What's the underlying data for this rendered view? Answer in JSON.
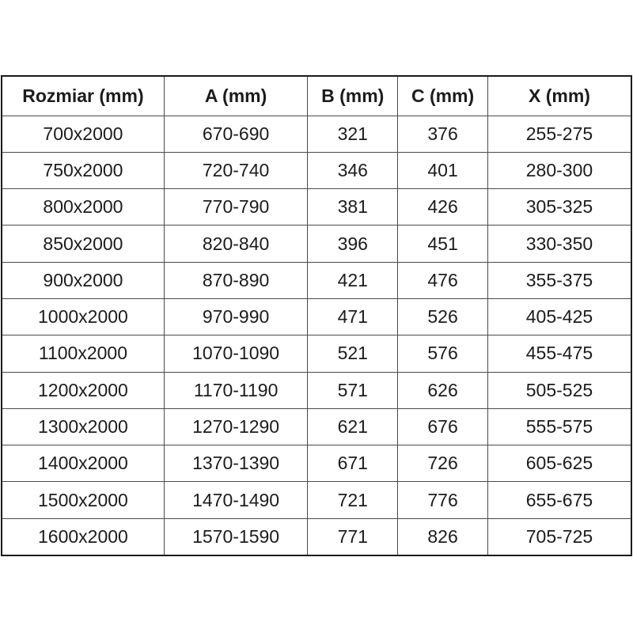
{
  "table": {
    "headers": [
      "Rozmiar (mm)",
      "A (mm)",
      "B (mm)",
      "C (mm)",
      "X (mm)"
    ],
    "rows": [
      [
        "700x2000",
        "670-690",
        "321",
        "376",
        "255-275"
      ],
      [
        "750x2000",
        "720-740",
        "346",
        "401",
        "280-300"
      ],
      [
        "800x2000",
        "770-790",
        "381",
        "426",
        "305-325"
      ],
      [
        "850x2000",
        "820-840",
        "396",
        "451",
        "330-350"
      ],
      [
        "900x2000",
        "870-890",
        "421",
        "476",
        "355-375"
      ],
      [
        "1000x2000",
        "970-990",
        "471",
        "526",
        "405-425"
      ],
      [
        "1100x2000",
        "1070-1090",
        "521",
        "576",
        "455-475"
      ],
      [
        "1200x2000",
        "1170-1190",
        "571",
        "626",
        "505-525"
      ],
      [
        "1300x2000",
        "1270-1290",
        "621",
        "676",
        "555-575"
      ],
      [
        "1400x2000",
        "1370-1390",
        "671",
        "726",
        "605-625"
      ],
      [
        "1500x2000",
        "1470-1490",
        "721",
        "776",
        "655-675"
      ],
      [
        "1600x2000",
        "1570-1590",
        "771",
        "826",
        "705-725"
      ]
    ],
    "column_keys": [
      "rozmiar",
      "a",
      "b",
      "c",
      "x"
    ]
  },
  "colors": {
    "border_outer": "#1a1a1a",
    "border_inner": "#4a4a4a",
    "text": "#1c1c1c",
    "background": "#ffffff"
  }
}
